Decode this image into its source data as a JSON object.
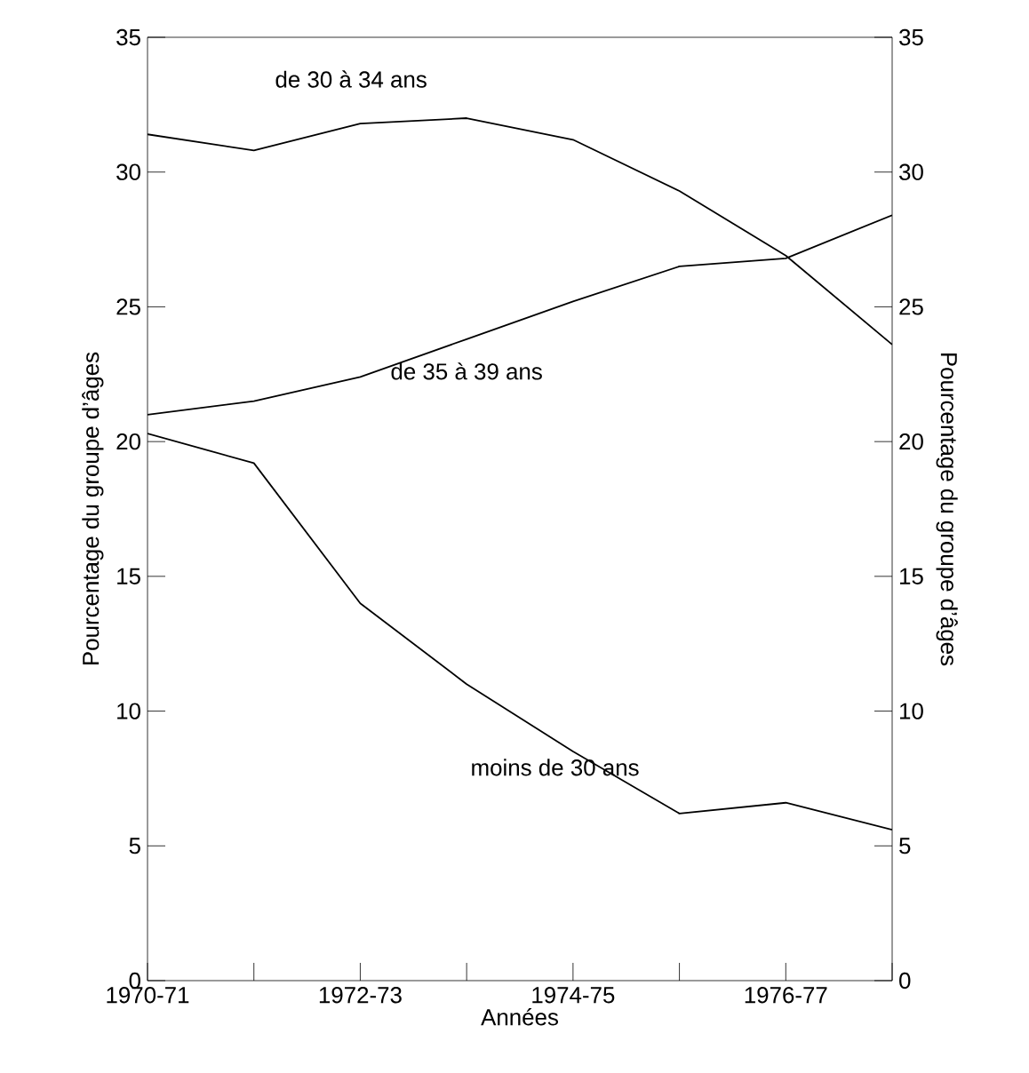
{
  "chart_data": {
    "type": "line",
    "xlabel": "Années",
    "ylabel": "Pourcentage du groupe d’âges",
    "y2label": "Pourcentage du groupe d’âges",
    "categories": [
      "1970-71",
      null,
      "1972-73",
      null,
      "1974-75",
      null,
      "1976-77",
      null
    ],
    "series": [
      {
        "name": "de 30 à 34 ans",
        "color": "#000000",
        "values": [
          31.4,
          30.8,
          31.8,
          32.0,
          31.2,
          29.3,
          26.9,
          23.6
        ]
      },
      {
        "name": "de 35 à 39 ans",
        "color": "#000000",
        "values": [
          21.0,
          21.5,
          22.4,
          23.8,
          25.2,
          26.5,
          26.8,
          28.4
        ]
      },
      {
        "name": "moins de 30 ans",
        "color": "#000000",
        "values": [
          20.3,
          19.2,
          14.0,
          11.0,
          8.5,
          6.2,
          6.6,
          5.6
        ]
      }
    ],
    "ylim": [
      0,
      35
    ],
    "yticks": [
      0,
      5,
      10,
      15,
      20,
      25,
      30,
      35
    ],
    "y2lim": [
      0,
      35
    ],
    "y2ticks": [
      0,
      5,
      10,
      15,
      20,
      25,
      30,
      35
    ],
    "grid": false,
    "legend": false,
    "marker": "none",
    "line_style": "solid"
  }
}
